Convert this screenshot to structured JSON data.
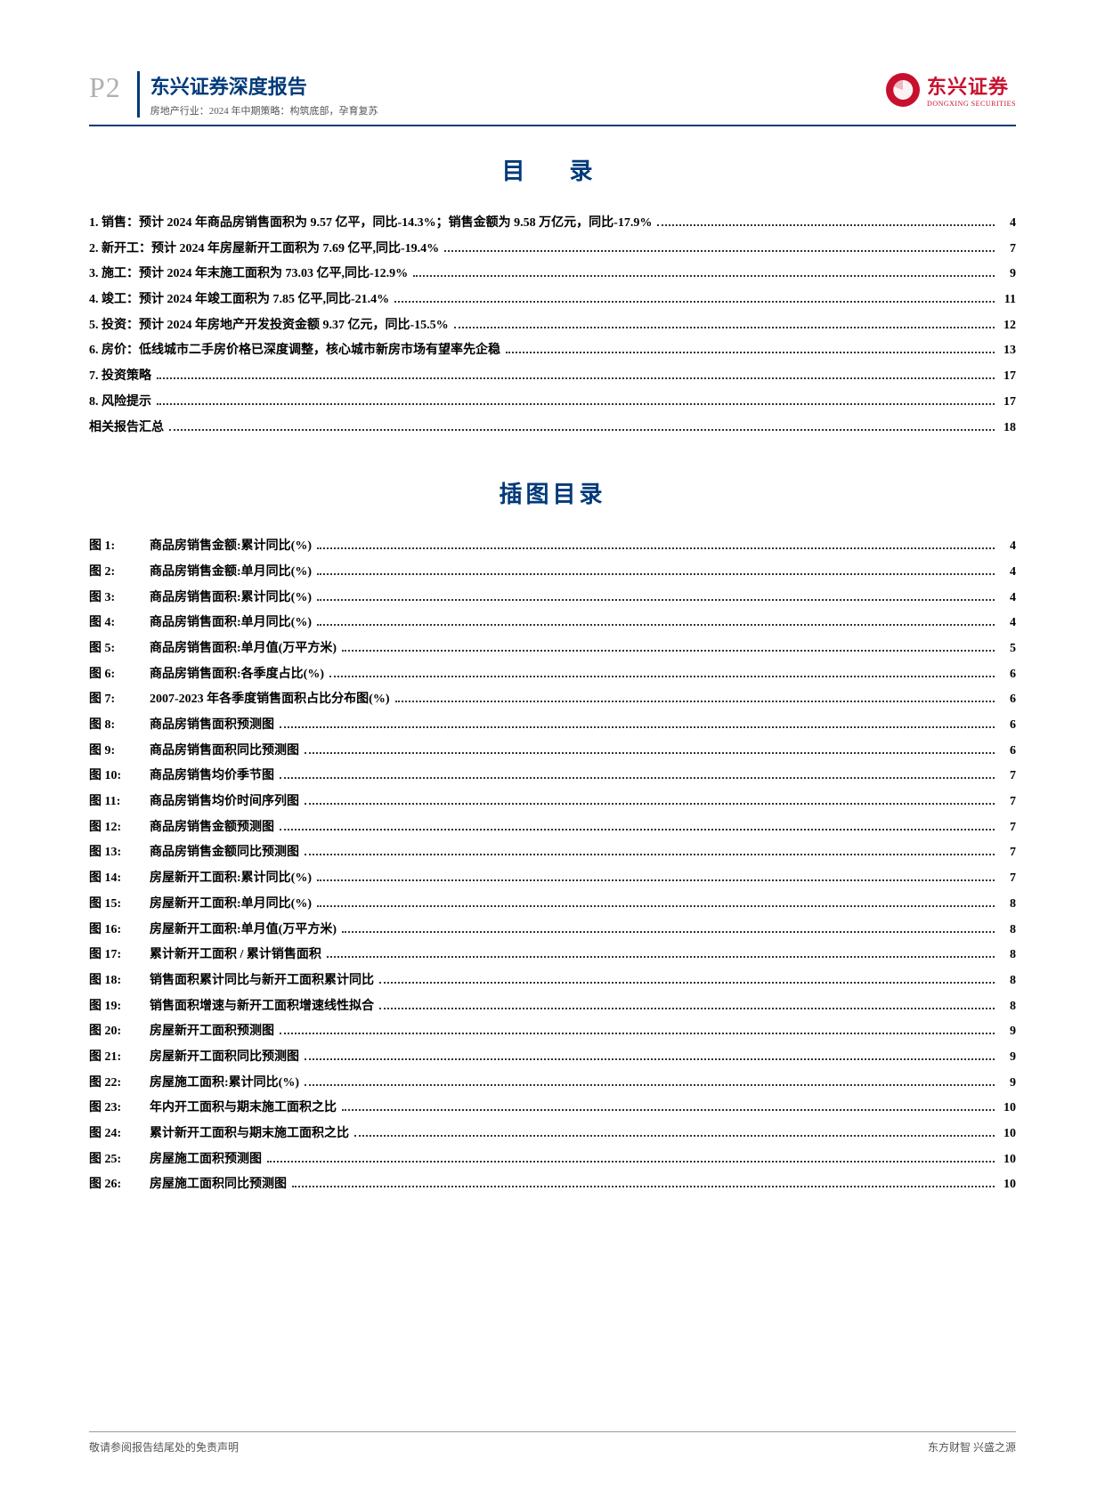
{
  "header": {
    "page_number": "P2",
    "title": "东兴证券深度报告",
    "subtitle": "房地产行业：2024 年中期策略：构筑底部，孕育复苏",
    "logo_cn": "东兴证券",
    "logo_en": "DONGXING SECURITIES",
    "brand_color": "#c8102e",
    "rule_color": "#003a7a"
  },
  "sections": {
    "toc_title": "目　录",
    "fig_title": "插图目录"
  },
  "toc": [
    {
      "label": "1. 销售：预计 2024 年商品房销售面积为 9.57 亿平，同比-14.3%；销售金额为 9.58 万亿元，同比-17.9%",
      "page": "4"
    },
    {
      "label": "2. 新开工：预计 2024 年房屋新开工面积为 7.69 亿平,同比-19.4%",
      "page": "7"
    },
    {
      "label": "3. 施工：预计 2024 年末施工面积为 73.03 亿平,同比-12.9%",
      "page": "9"
    },
    {
      "label": "4. 竣工：预计 2024 年竣工面积为 7.85 亿平,同比-21.4%",
      "page": "11"
    },
    {
      "label": "5. 投资：预计 2024 年房地产开发投资金额 9.37 亿元，同比-15.5%",
      "page": "12"
    },
    {
      "label": "6. 房价：低线城市二手房价格已深度调整，核心城市新房市场有望率先企稳",
      "page": "13"
    },
    {
      "label": "7. 投资策略",
      "page": "17"
    },
    {
      "label": "8. 风险提示",
      "page": "17"
    },
    {
      "label": "相关报告汇总",
      "page": "18"
    }
  ],
  "figures": [
    {
      "num": "图 1:",
      "label": "商品房销售金额:累计同比(%)",
      "page": "4"
    },
    {
      "num": "图 2:",
      "label": "商品房销售金额:单月同比(%)",
      "page": "4"
    },
    {
      "num": "图 3:",
      "label": "商品房销售面积:累计同比(%)",
      "page": "4"
    },
    {
      "num": "图 4:",
      "label": "商品房销售面积:单月同比(%)",
      "page": "4"
    },
    {
      "num": "图 5:",
      "label": "商品房销售面积:单月值(万平方米)",
      "page": "5"
    },
    {
      "num": "图 6:",
      "label": "商品房销售面积:各季度占比(%)",
      "page": "6"
    },
    {
      "num": "图 7:",
      "label": "2007-2023 年各季度销售面积占比分布图(%)",
      "page": "6"
    },
    {
      "num": "图 8:",
      "label": "商品房销售面积预测图",
      "page": "6"
    },
    {
      "num": "图 9:",
      "label": "商品房销售面积同比预测图",
      "page": "6"
    },
    {
      "num": "图 10:",
      "label": "商品房销售均价季节图",
      "page": "7"
    },
    {
      "num": "图 11:",
      "label": "商品房销售均价时间序列图",
      "page": "7"
    },
    {
      "num": "图 12:",
      "label": "商品房销售金额预测图",
      "page": "7"
    },
    {
      "num": "图 13:",
      "label": "商品房销售金额同比预测图",
      "page": "7"
    },
    {
      "num": "图 14:",
      "label": "房屋新开工面积:累计同比(%)",
      "page": "7"
    },
    {
      "num": "图 15:",
      "label": "房屋新开工面积:单月同比(%)",
      "page": "8"
    },
    {
      "num": "图 16:",
      "label": "房屋新开工面积:单月值(万平方米)",
      "page": "8"
    },
    {
      "num": "图 17:",
      "label": "累计新开工面积 / 累计销售面积",
      "page": "8"
    },
    {
      "num": "图 18:",
      "label": "销售面积累计同比与新开工面积累计同比",
      "page": "8"
    },
    {
      "num": "图 19:",
      "label": "销售面积增速与新开工面积增速线性拟合",
      "page": "8"
    },
    {
      "num": "图 20:",
      "label": "房屋新开工面积预测图",
      "page": "9"
    },
    {
      "num": "图 21:",
      "label": "房屋新开工面积同比预测图",
      "page": "9"
    },
    {
      "num": "图 22:",
      "label": "房屋施工面积:累计同比(%)",
      "page": "9"
    },
    {
      "num": "图 23:",
      "label": "年内开工面积与期末施工面积之比",
      "page": "10"
    },
    {
      "num": "图 24:",
      "label": "累计新开工面积与期末施工面积之比",
      "page": "10"
    },
    {
      "num": "图 25:",
      "label": "房屋施工面积预测图",
      "page": "10"
    },
    {
      "num": "图 26:",
      "label": "房屋施工面积同比预测图",
      "page": "10"
    }
  ],
  "footer": {
    "left": "敬请参阅报告结尾处的免责声明",
    "right": "东方财智 兴盛之源"
  },
  "style": {
    "page_bg": "#ffffff",
    "title_color": "#003a7a",
    "body_font_size": 14,
    "section_title_fontsize": 26,
    "line_height": 2.05
  }
}
